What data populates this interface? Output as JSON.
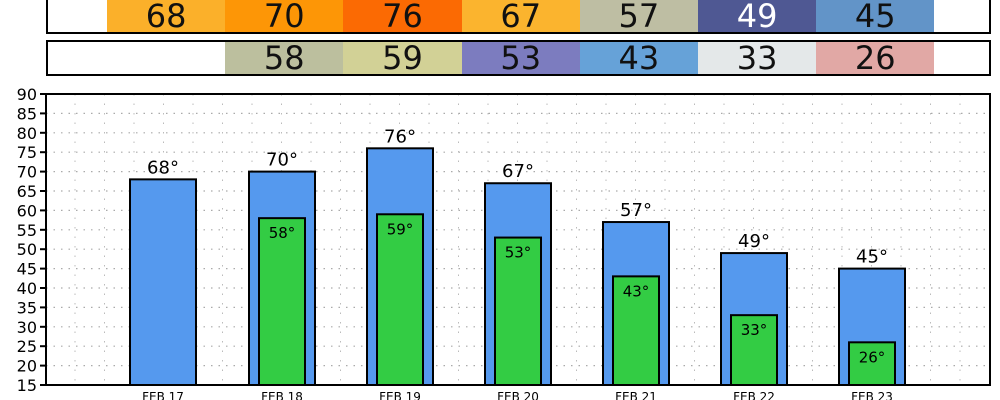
{
  "chart_data": {
    "type": "bar",
    "categories": [
      "FEB 17",
      "FEB 18",
      "FEB 19",
      "FEB 20",
      "FEB 21",
      "FEB 22",
      "FEB 23"
    ],
    "series": [
      {
        "values": [
          68,
          70,
          76,
          67,
          57,
          49,
          45
        ],
        "labels": [
          "68°",
          "70°",
          "76°",
          "67°",
          "57°",
          "49°",
          "45°"
        ],
        "color": "#5599ee"
      },
      {
        "values": [
          null,
          58,
          59,
          53,
          43,
          33,
          26
        ],
        "labels": [
          "",
          "58°",
          "59°",
          "53°",
          "43°",
          "33°",
          "26°"
        ],
        "color": "#33cc44"
      }
    ],
    "ylim": [
      15,
      90
    ],
    "yticks": [
      15,
      20,
      25,
      30,
      35,
      40,
      45,
      50,
      55,
      60,
      65,
      70,
      75,
      80,
      85,
      90
    ],
    "grid": true
  },
  "high_strip": {
    "values": [
      "68",
      "70",
      "76",
      "67",
      "57",
      "49",
      "45"
    ],
    "colors": [
      "#fbb02a",
      "#fd9606",
      "#fb6a03",
      "#fbb42e",
      "#bebea3",
      "#4f5893",
      "#6294c8"
    ],
    "text_colors": [
      "#111111",
      "#111111",
      "#111111",
      "#111111",
      "#111111",
      "#ffffff",
      "#111111"
    ]
  },
  "low_strip": {
    "values": [
      "",
      "58",
      "59",
      "53",
      "43",
      "33",
      "26"
    ],
    "colors": [
      "#ffffff",
      "#bcbf9e",
      "#d2d196",
      "#7c7cbf",
      "#66a2d8",
      "#e4e8e9",
      "#e1a8a5"
    ],
    "text_colors": [
      "#111111",
      "#111111",
      "#111111",
      "#111111",
      "#111111",
      "#111111",
      "#111111"
    ]
  }
}
